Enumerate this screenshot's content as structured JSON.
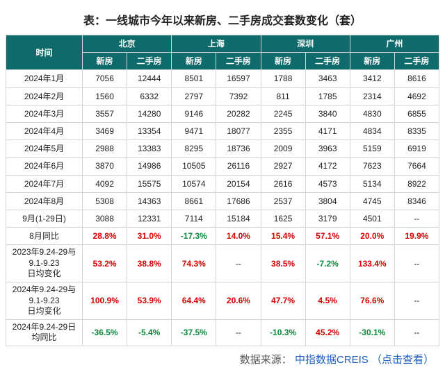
{
  "title": "表：一线城市今年以来新房、二手房成交套数变化（套）",
  "header": {
    "time": "时间",
    "cities": [
      "北京",
      "上海",
      "深圳",
      "广州"
    ],
    "subcols": [
      "新房",
      "二手房"
    ]
  },
  "colors": {
    "header_bg": "#0f6b6b",
    "header_text": "#ffffff",
    "border": "#cfd6d6",
    "text": "#222222",
    "positive": "#d40000",
    "negative": "#0a8a3a"
  },
  "rows": [
    {
      "label": "2024年1月",
      "values": [
        "7056",
        "12444",
        "8501",
        "16597",
        "1788",
        "3463",
        "3412",
        "8616"
      ]
    },
    {
      "label": "2024年2月",
      "values": [
        "1560",
        "6332",
        "2797",
        "7392",
        "811",
        "1785",
        "2314",
        "4692"
      ]
    },
    {
      "label": "2024年3月",
      "values": [
        "3557",
        "14280",
        "9146",
        "20282",
        "2245",
        "3840",
        "4830",
        "6855"
      ]
    },
    {
      "label": "2024年4月",
      "values": [
        "3469",
        "13354",
        "9471",
        "18077",
        "2355",
        "4171",
        "4834",
        "8335"
      ]
    },
    {
      "label": "2024年5月",
      "values": [
        "2988",
        "13383",
        "8295",
        "18736",
        "2009",
        "3963",
        "5159",
        "6919"
      ]
    },
    {
      "label": "2024年6月",
      "values": [
        "3870",
        "14986",
        "10505",
        "26116",
        "2927",
        "4172",
        "7623",
        "7664"
      ]
    },
    {
      "label": "2024年7月",
      "values": [
        "4092",
        "15575",
        "10574",
        "20154",
        "2616",
        "4573",
        "5134",
        "8922"
      ]
    },
    {
      "label": "2024年8月",
      "values": [
        "5308",
        "14363",
        "8661",
        "17686",
        "2537",
        "3804",
        "4745",
        "8346"
      ]
    },
    {
      "label": "9月(1-29日)",
      "values": [
        "3088",
        "12331",
        "7114",
        "15184",
        "1625",
        "3179",
        "4501",
        "--"
      ]
    },
    {
      "label": "8月同比",
      "values": [
        "28.8%",
        "31.0%",
        "-17.3%",
        "14.0%",
        "15.4%",
        "57.1%",
        "20.0%",
        "19.9%"
      ],
      "pct": true
    },
    {
      "label": "2023年9.24-29与\n9.1-9.23\n日均变化",
      "values": [
        "53.2%",
        "38.8%",
        "74.3%",
        "--",
        "38.5%",
        "-7.2%",
        "133.4%",
        "--"
      ],
      "pct": true,
      "multi": true
    },
    {
      "label": "2024年9.24-29与\n9.1-9.23\n日均变化",
      "values": [
        "100.9%",
        "53.9%",
        "64.4%",
        "20.6%",
        "47.7%",
        "4.5%",
        "76.6%",
        "--"
      ],
      "pct": true,
      "multi": true
    },
    {
      "label": "2024年9.24-29日\n均同比",
      "values": [
        "-36.5%",
        "-5.4%",
        "-37.5%",
        "--",
        "-10.3%",
        "45.2%",
        "-30.1%",
        "--"
      ],
      "pct": true,
      "multi": true
    }
  ],
  "footer": {
    "prefix": "数据来源：",
    "brand": "中指数据CREIS",
    "hint": "（点击查看）"
  }
}
